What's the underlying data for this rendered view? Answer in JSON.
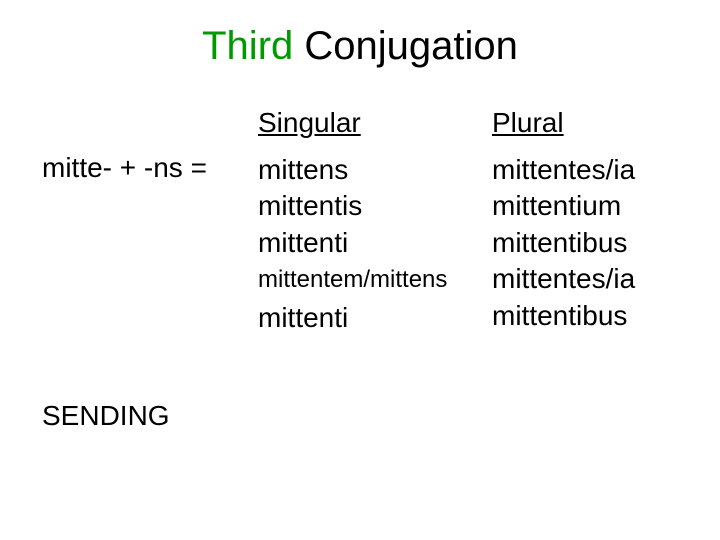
{
  "title": {
    "first": "Third",
    "rest": " Conjugation"
  },
  "headers": {
    "singular": "Singular",
    "plural": "Plural"
  },
  "formula": "mitte- + -ns =",
  "singular": {
    "r1": "mittens",
    "r2": "mittentis",
    "r3": "mittenti",
    "r4": "mittentem/mittens",
    "r5": "mittenti"
  },
  "plural": {
    "r1": "mittentes/ia",
    "r2": "mittentium",
    "r3": "mittentibus",
    "r4": "mittentes/ia",
    "r5": "mittentibus"
  },
  "sending": "SENDING",
  "colors": {
    "accent": "#009900",
    "text": "#000000",
    "background": "#ffffff"
  }
}
